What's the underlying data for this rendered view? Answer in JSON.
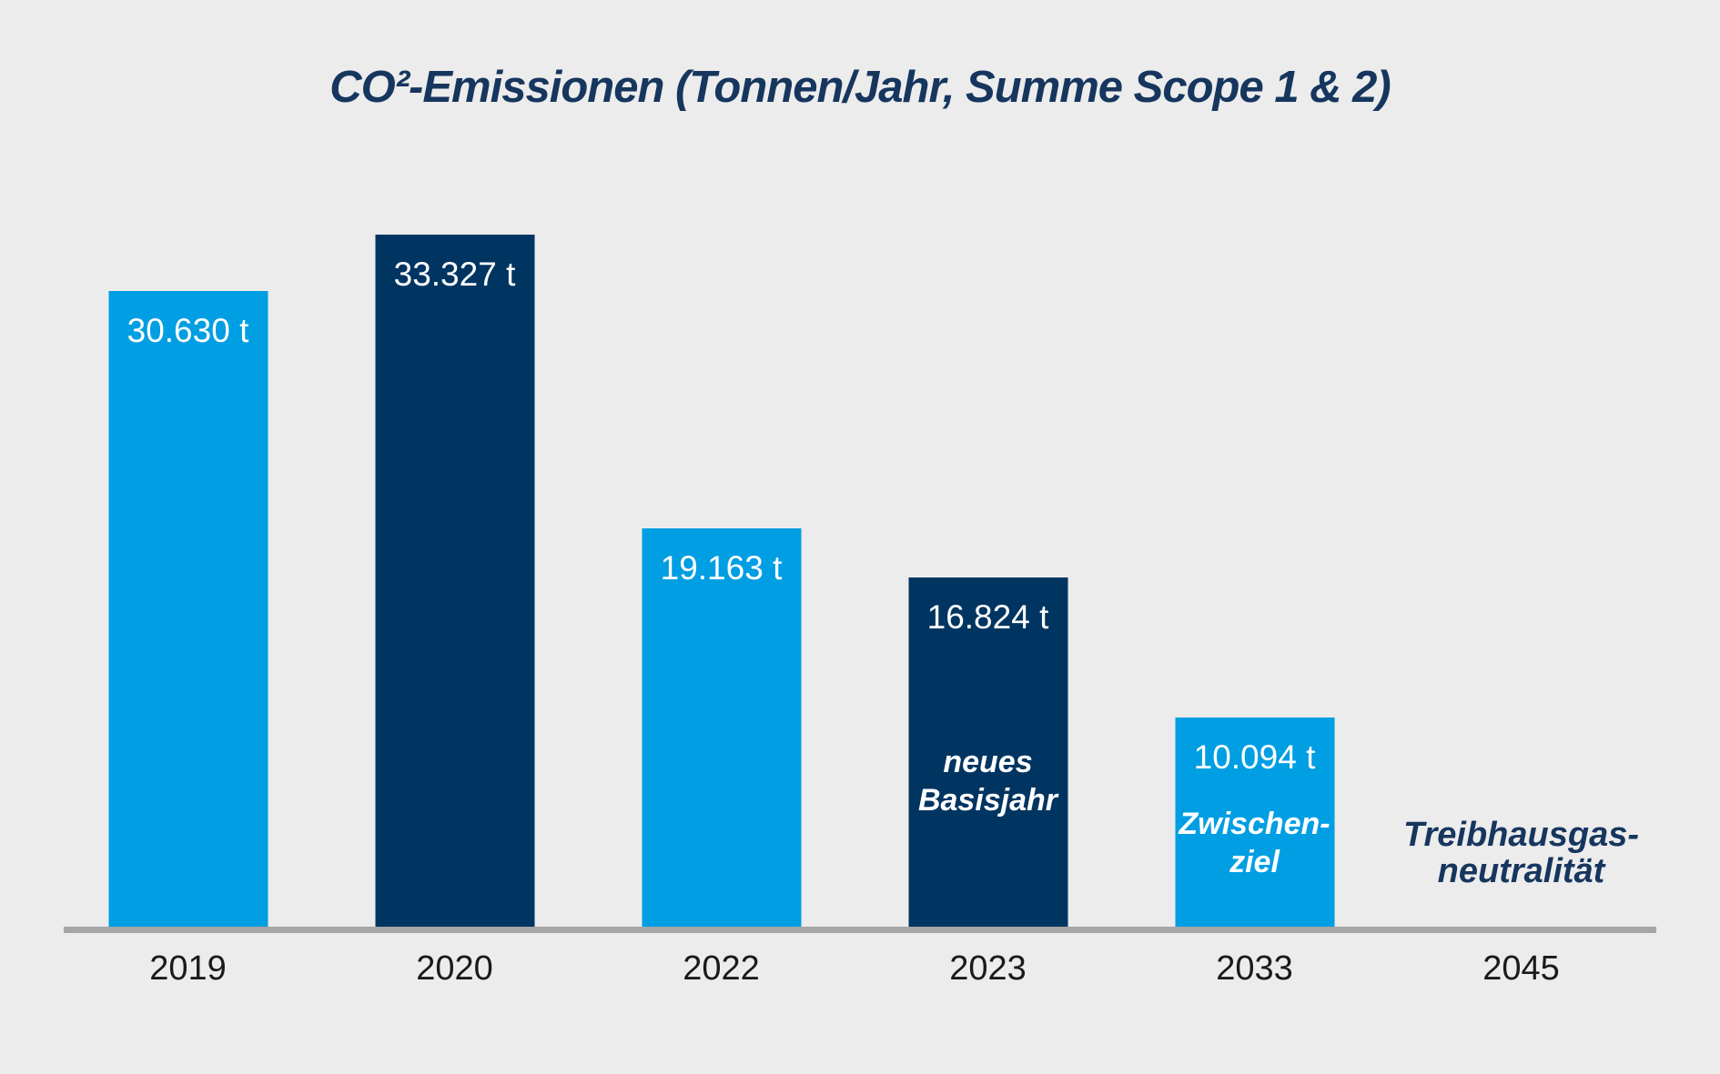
{
  "title": "CO²-Emissionen (Tonnen/Jahr, Summe Scope 1 & 2)",
  "colors": {
    "background": "#ECECEC",
    "bar_light_blue": "#009EE3",
    "bar_navy": "#003561",
    "title_text": "#16365E",
    "axis_line": "#A6A6A6",
    "year_label": "#1A1A1A",
    "value_label": "#FFFFFF"
  },
  "chart_data": {
    "type": "bar",
    "title": "CO²-Emissionen (Tonnen/Jahr, Summe Scope 1 & 2)",
    "categories": [
      "2019",
      "2020",
      "2022",
      "2023",
      "2033",
      "2045"
    ],
    "values": [
      30630,
      33327,
      19163,
      16824,
      10094,
      0
    ],
    "value_labels": [
      "30.630 t",
      "33.327 t",
      "19.163 t",
      "16.824 t",
      "10.094 t",
      ""
    ],
    "bar_colors": [
      "#009EE3",
      "#003561",
      "#009EE3",
      "#003561",
      "#009EE3",
      null
    ],
    "xlabel": "",
    "ylabel": "",
    "ylim": [
      0,
      35000
    ],
    "grid": false,
    "legend": false,
    "annotations": [
      {
        "category": "2023",
        "lines": [
          "neues",
          "Basisjahr"
        ],
        "placement": "inside-bar",
        "color": "#FFFFFF"
      },
      {
        "category": "2033",
        "lines": [
          "Zwischen-",
          "ziel"
        ],
        "placement": "inside-bar",
        "color": "#FFFFFF"
      },
      {
        "category": "2045",
        "lines": [
          "Treibhausgas-",
          "neutralität"
        ],
        "placement": "above-axis",
        "color": "#16365E"
      }
    ]
  }
}
